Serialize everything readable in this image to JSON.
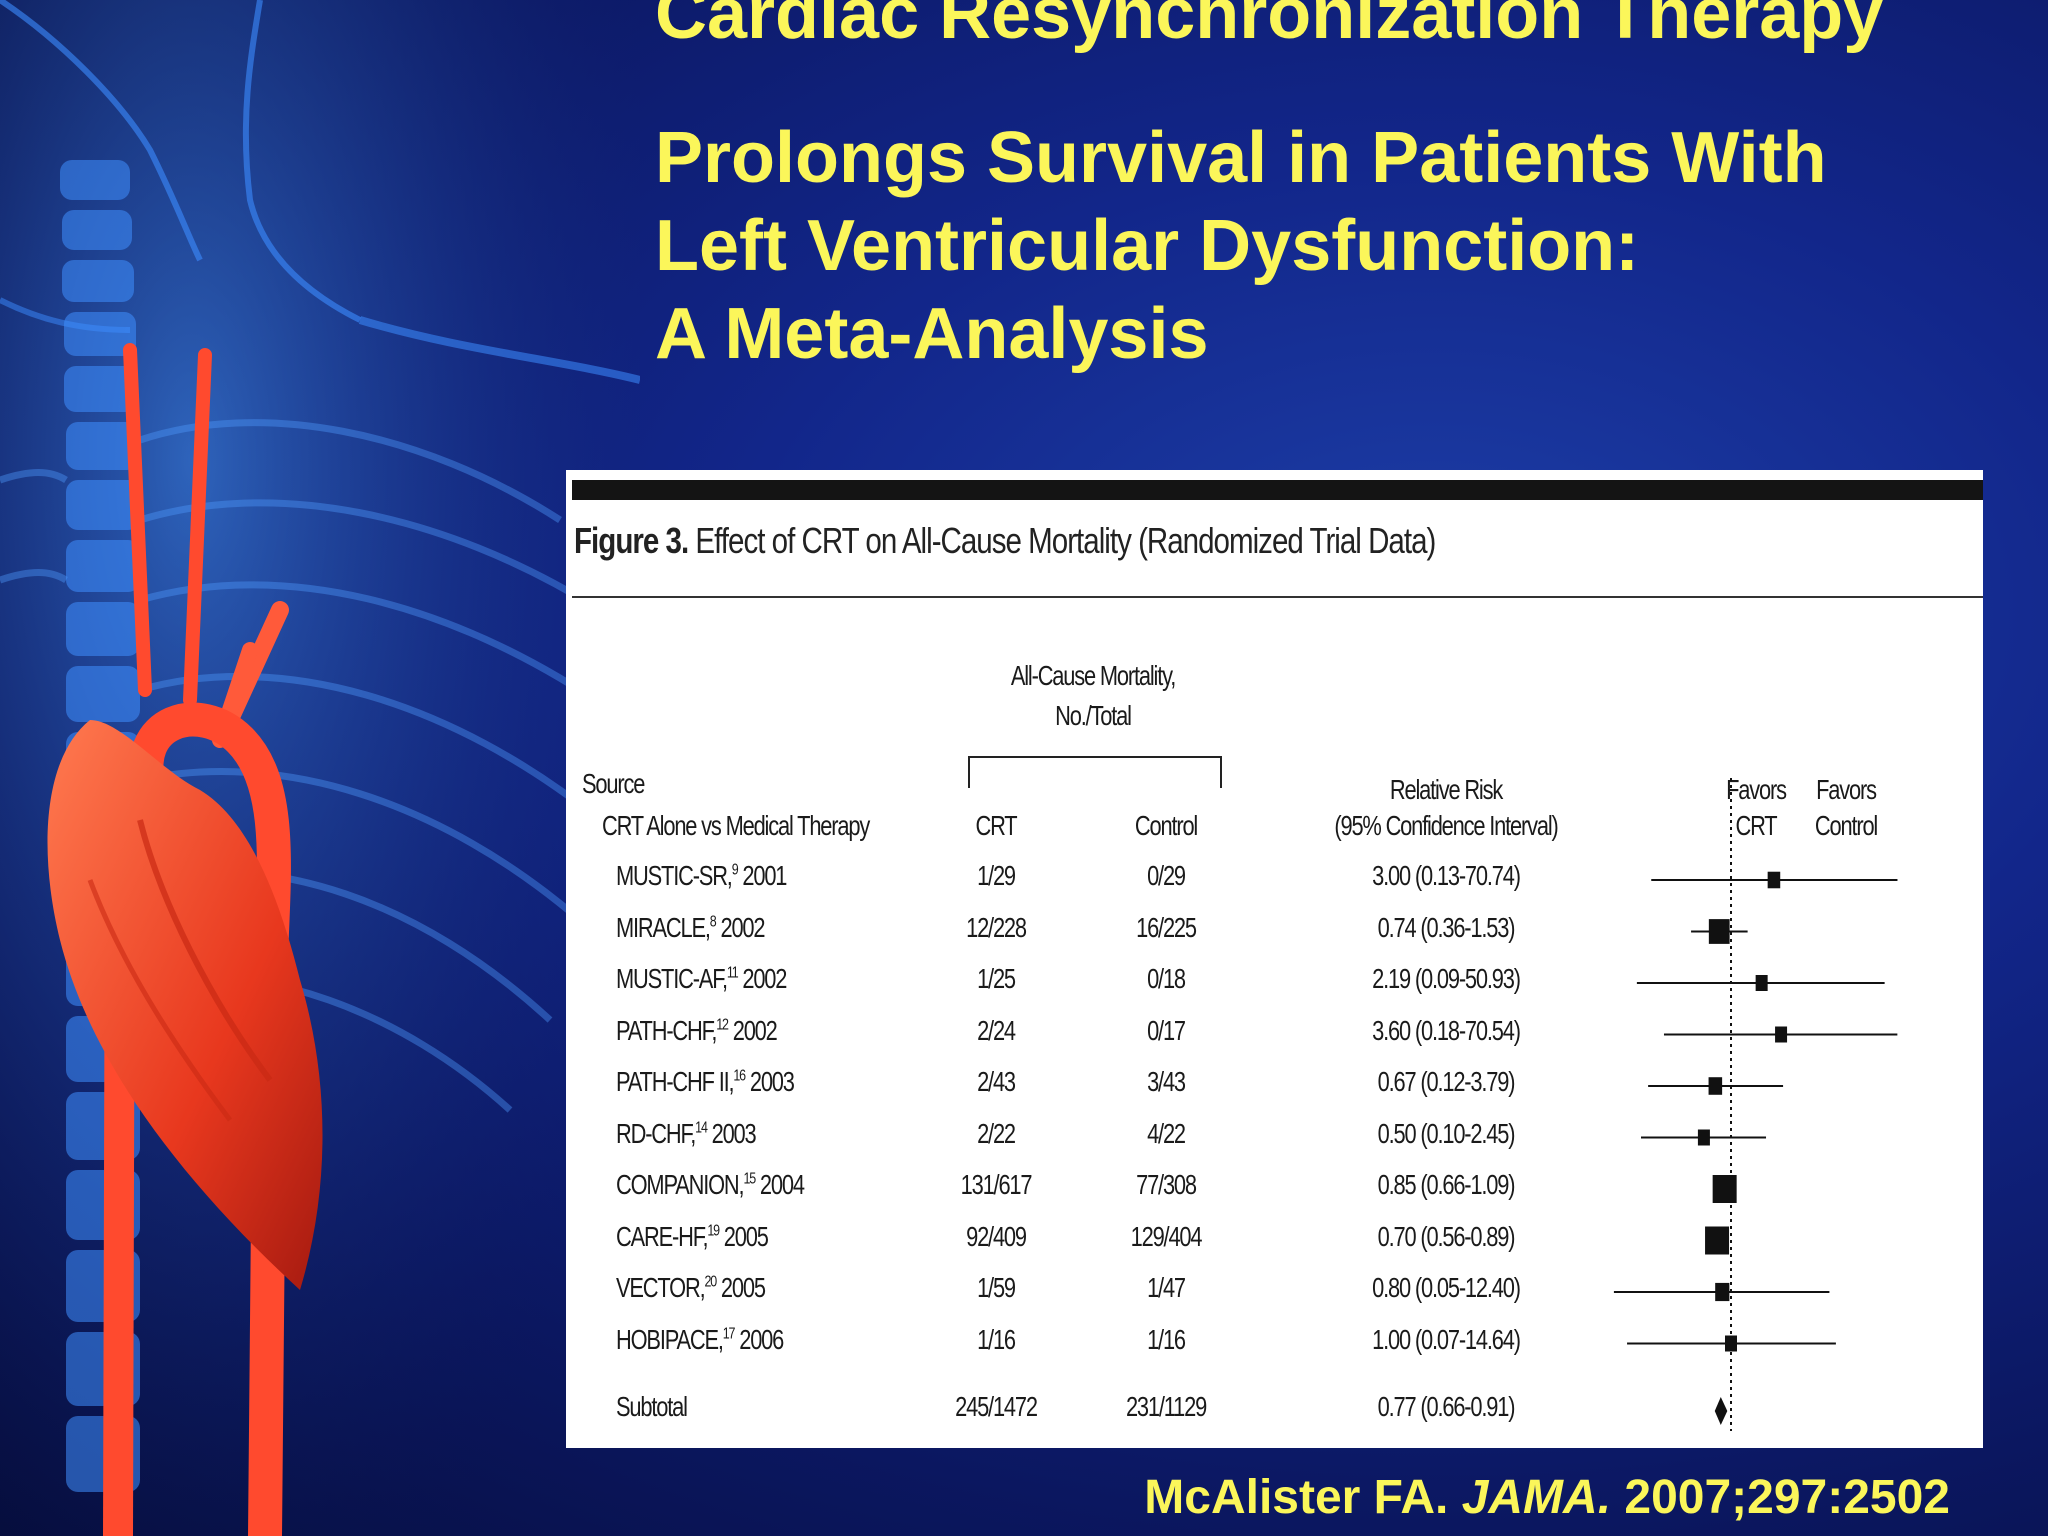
{
  "title": {
    "line1": "Cardiac Resynchronization Therapy",
    "line2": "Prolongs Survival in Patients With",
    "line3": "Left Ventricular Dysfunction:",
    "line4": "A Meta-Analysis"
  },
  "citation": {
    "author": "McAlister FA.",
    "journal": "JAMA.",
    "ref": "2007;297:2502"
  },
  "chart_data": {
    "type": "forest",
    "figure_label": "Figure 3.",
    "figure_caption": "Effect of CRT on All-Cause Mortality (Randomized Trial Data)",
    "group_header_line1": "All-Cause Mortality,",
    "group_header_line2": "No./Total",
    "col_source": "Source",
    "subgroup": "CRT Alone vs Medical Therapy",
    "col_crt": "CRT",
    "col_control": "Control",
    "col_rr_line1": "Relative Risk",
    "col_rr_line2": "(95% Confidence Interval)",
    "favors_left_1": "Favors",
    "favors_left_2": "CRT",
    "favors_right_1": "Favors",
    "favors_right_2": "Control",
    "reference_value": 1.0,
    "rows": [
      {
        "source": "MUSTIC-SR,",
        "ref": "9",
        "year": "2001",
        "crt": "1/29",
        "control": "0/29",
        "rr_text": "3.00 (0.13-70.74)",
        "rr": 3.0,
        "lo": 0.13,
        "hi": 70.74
      },
      {
        "source": "MIRACLE,",
        "ref": "8",
        "year": "2002",
        "crt": "12/228",
        "control": "16/225",
        "rr_text": "0.74 (0.36-1.53)",
        "rr": 0.74,
        "lo": 0.36,
        "hi": 1.53
      },
      {
        "source": "MUSTIC-AF,",
        "ref": "11",
        "year": "2002",
        "crt": "1/25",
        "control": "0/18",
        "rr_text": "2.19 (0.09-50.93)",
        "rr": 2.19,
        "lo": 0.09,
        "hi": 50.93
      },
      {
        "source": "PATH-CHF,",
        "ref": "12",
        "year": "2002",
        "crt": "2/24",
        "control": "0/17",
        "rr_text": "3.60 (0.18-70.54)",
        "rr": 3.6,
        "lo": 0.18,
        "hi": 70.54
      },
      {
        "source": "PATH-CHF II,",
        "ref": "16",
        "year": "2003",
        "crt": "2/43",
        "control": "3/43",
        "rr_text": "0.67 (0.12-3.79)",
        "rr": 0.67,
        "lo": 0.12,
        "hi": 3.79
      },
      {
        "source": "RD-CHF,",
        "ref": "14",
        "year": "2003",
        "crt": "2/22",
        "control": "4/22",
        "rr_text": "0.50 (0.10-2.45)",
        "rr": 0.5,
        "lo": 0.1,
        "hi": 2.45
      },
      {
        "source": "COMPANION,",
        "ref": "15",
        "year": "2004",
        "crt": "131/617",
        "control": "77/308",
        "rr_text": "0.85 (0.66-1.09)",
        "rr": 0.85,
        "lo": 0.66,
        "hi": 1.09
      },
      {
        "source": "CARE-HF,",
        "ref": "19",
        "year": "2005",
        "crt": "92/409",
        "control": "129/404",
        "rr_text": "0.70 (0.56-0.89)",
        "rr": 0.7,
        "lo": 0.56,
        "hi": 0.89
      },
      {
        "source": "VECTOR,",
        "ref": "20",
        "year": "2005",
        "crt": "1/59",
        "control": "1/47",
        "rr_text": "0.80 (0.05-12.40)",
        "rr": 0.8,
        "lo": 0.05,
        "hi": 12.4
      },
      {
        "source": "HOBIPACE,",
        "ref": "17",
        "year": "2006",
        "crt": "1/16",
        "control": "1/16",
        "rr_text": "1.00 (0.07-14.64)",
        "rr": 1.0,
        "lo": 0.07,
        "hi": 14.64
      }
    ],
    "subtotal": {
      "label": "Subtotal",
      "crt": "245/1472",
      "control": "231/1129",
      "rr_text": "0.77 (0.66-0.91)",
      "rr": 0.77,
      "lo": 0.66,
      "hi": 0.91
    },
    "x_scale": "log"
  }
}
